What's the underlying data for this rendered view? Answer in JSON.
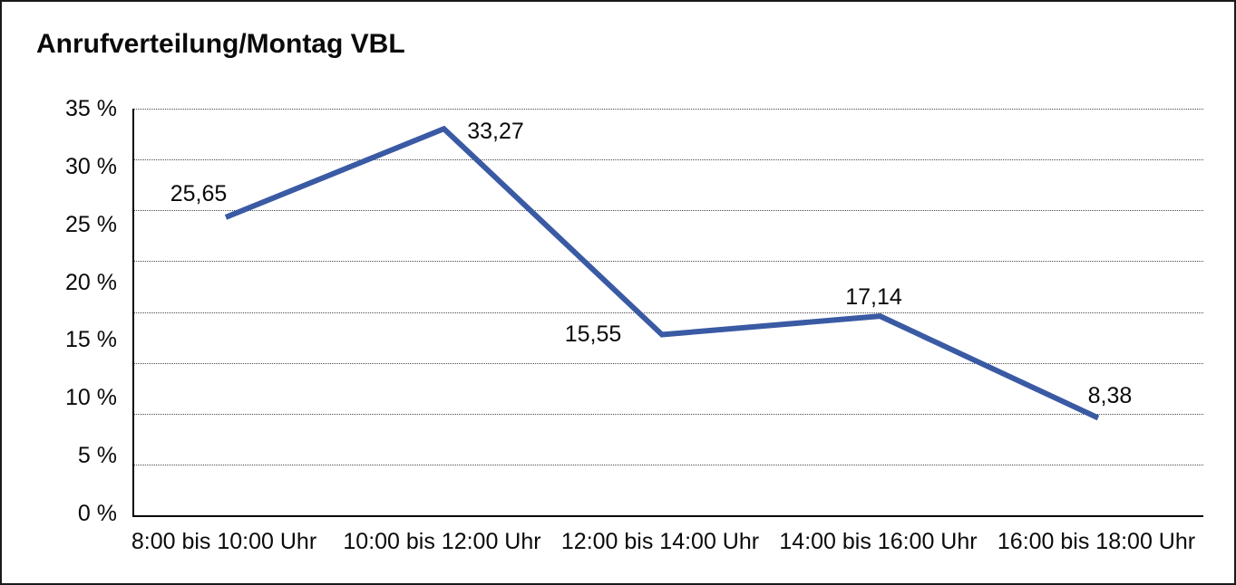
{
  "title": "Anrufverteilung/Montag VBL",
  "chart_data": {
    "type": "line",
    "title": "Anrufverteilung/Montag VBL",
    "categories": [
      "8:00 bis 10:00 Uhr",
      "10:00 bis 12:00 Uhr",
      "12:00 bis 14:00 Uhr",
      "14:00 bis 16:00 Uhr",
      "16:00 bis 18:00 Uhr"
    ],
    "values": [
      25.65,
      33.27,
      15.55,
      17.14,
      8.38
    ],
    "point_labels": [
      "25,65",
      "33,27",
      "15,55",
      "17,14",
      "8,38"
    ],
    "ytick_labels": [
      "35 %",
      "30 %",
      "25 %",
      "20 %",
      "15 %",
      "10 %",
      "5 %",
      "0 %"
    ],
    "ylim": [
      0,
      35
    ],
    "xlabel": "",
    "ylabel": "",
    "legend": "none",
    "grid": "horizontal-dotted",
    "line_color": "#3A5AA4"
  }
}
